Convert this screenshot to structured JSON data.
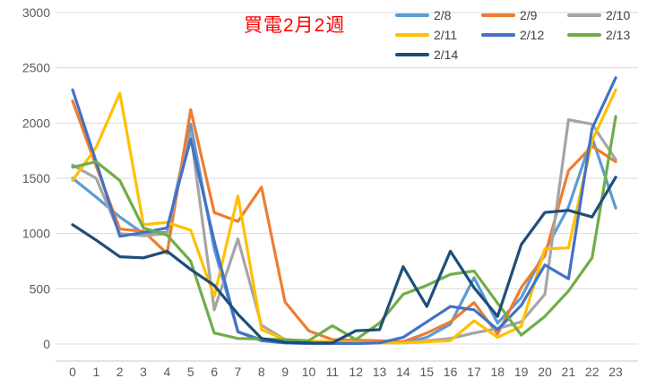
{
  "chart": {
    "title": "買電2月2週",
    "title_color": "#FF0000",
    "gridline_color": "#D9D9D9",
    "axis_line_color": "#C8C8C8",
    "axis_label_color": "#595959"
  },
  "chart_data": {
    "type": "line",
    "title": "買電2月2週",
    "xlabel": "",
    "ylabel": "",
    "x": [
      "0",
      "1",
      "2",
      "3",
      "4",
      "5",
      "6",
      "7",
      "8",
      "9",
      "10",
      "11",
      "12",
      "13",
      "14",
      "15",
      "16",
      "17",
      "18",
      "19",
      "20",
      "21",
      "22",
      "23"
    ],
    "ylim": [
      0,
      3000
    ],
    "ytick_step": 500,
    "grid": true,
    "legend_position": "top-right",
    "series": [
      {
        "name": "2/8",
        "color": "#5B9BD5",
        "values": [
          1500,
          1330,
          1150,
          1000,
          1010,
          1990,
          860,
          110,
          40,
          10,
          5,
          5,
          5,
          10,
          10,
          60,
          180,
          600,
          190,
          420,
          840,
          1240,
          1870,
          1230
        ]
      },
      {
        "name": "2/9",
        "color": "#ED7D31",
        "values": [
          2200,
          1610,
          1040,
          1020,
          820,
          2120,
          1190,
          1110,
          1420,
          380,
          120,
          40,
          35,
          30,
          20,
          100,
          200,
          375,
          90,
          510,
          800,
          1570,
          1790,
          1650
        ]
      },
      {
        "name": "2/10",
        "color": "#A5A5A5",
        "values": [
          1620,
          1500,
          1000,
          980,
          1000,
          1910,
          310,
          950,
          170,
          40,
          20,
          10,
          10,
          10,
          10,
          30,
          50,
          100,
          140,
          200,
          450,
          2030,
          1990,
          1670
        ]
      },
      {
        "name": "2/11",
        "color": "#FFC000",
        "values": [
          1480,
          1780,
          2270,
          1080,
          1100,
          1030,
          430,
          1340,
          130,
          40,
          25,
          20,
          15,
          10,
          10,
          20,
          30,
          210,
          60,
          160,
          860,
          870,
          1840,
          2300
        ]
      },
      {
        "name": "2/12",
        "color": "#4472C4",
        "values": [
          2300,
          1650,
          975,
          1010,
          1050,
          1855,
          930,
          110,
          30,
          10,
          5,
          5,
          5,
          10,
          60,
          200,
          340,
          310,
          130,
          350,
          715,
          590,
          1950,
          2410
        ]
      },
      {
        "name": "2/13",
        "color": "#70AD47",
        "values": [
          1600,
          1650,
          1480,
          1050,
          985,
          750,
          100,
          50,
          45,
          40,
          30,
          165,
          40,
          190,
          450,
          530,
          630,
          660,
          370,
          80,
          250,
          480,
          780,
          2060
        ]
      },
      {
        "name": "2/14",
        "color": "#1F4E79",
        "values": [
          1080,
          940,
          790,
          780,
          840,
          675,
          530,
          270,
          50,
          15,
          10,
          10,
          120,
          130,
          700,
          340,
          840,
          510,
          250,
          900,
          1190,
          1210,
          1150,
          1510
        ]
      }
    ]
  }
}
